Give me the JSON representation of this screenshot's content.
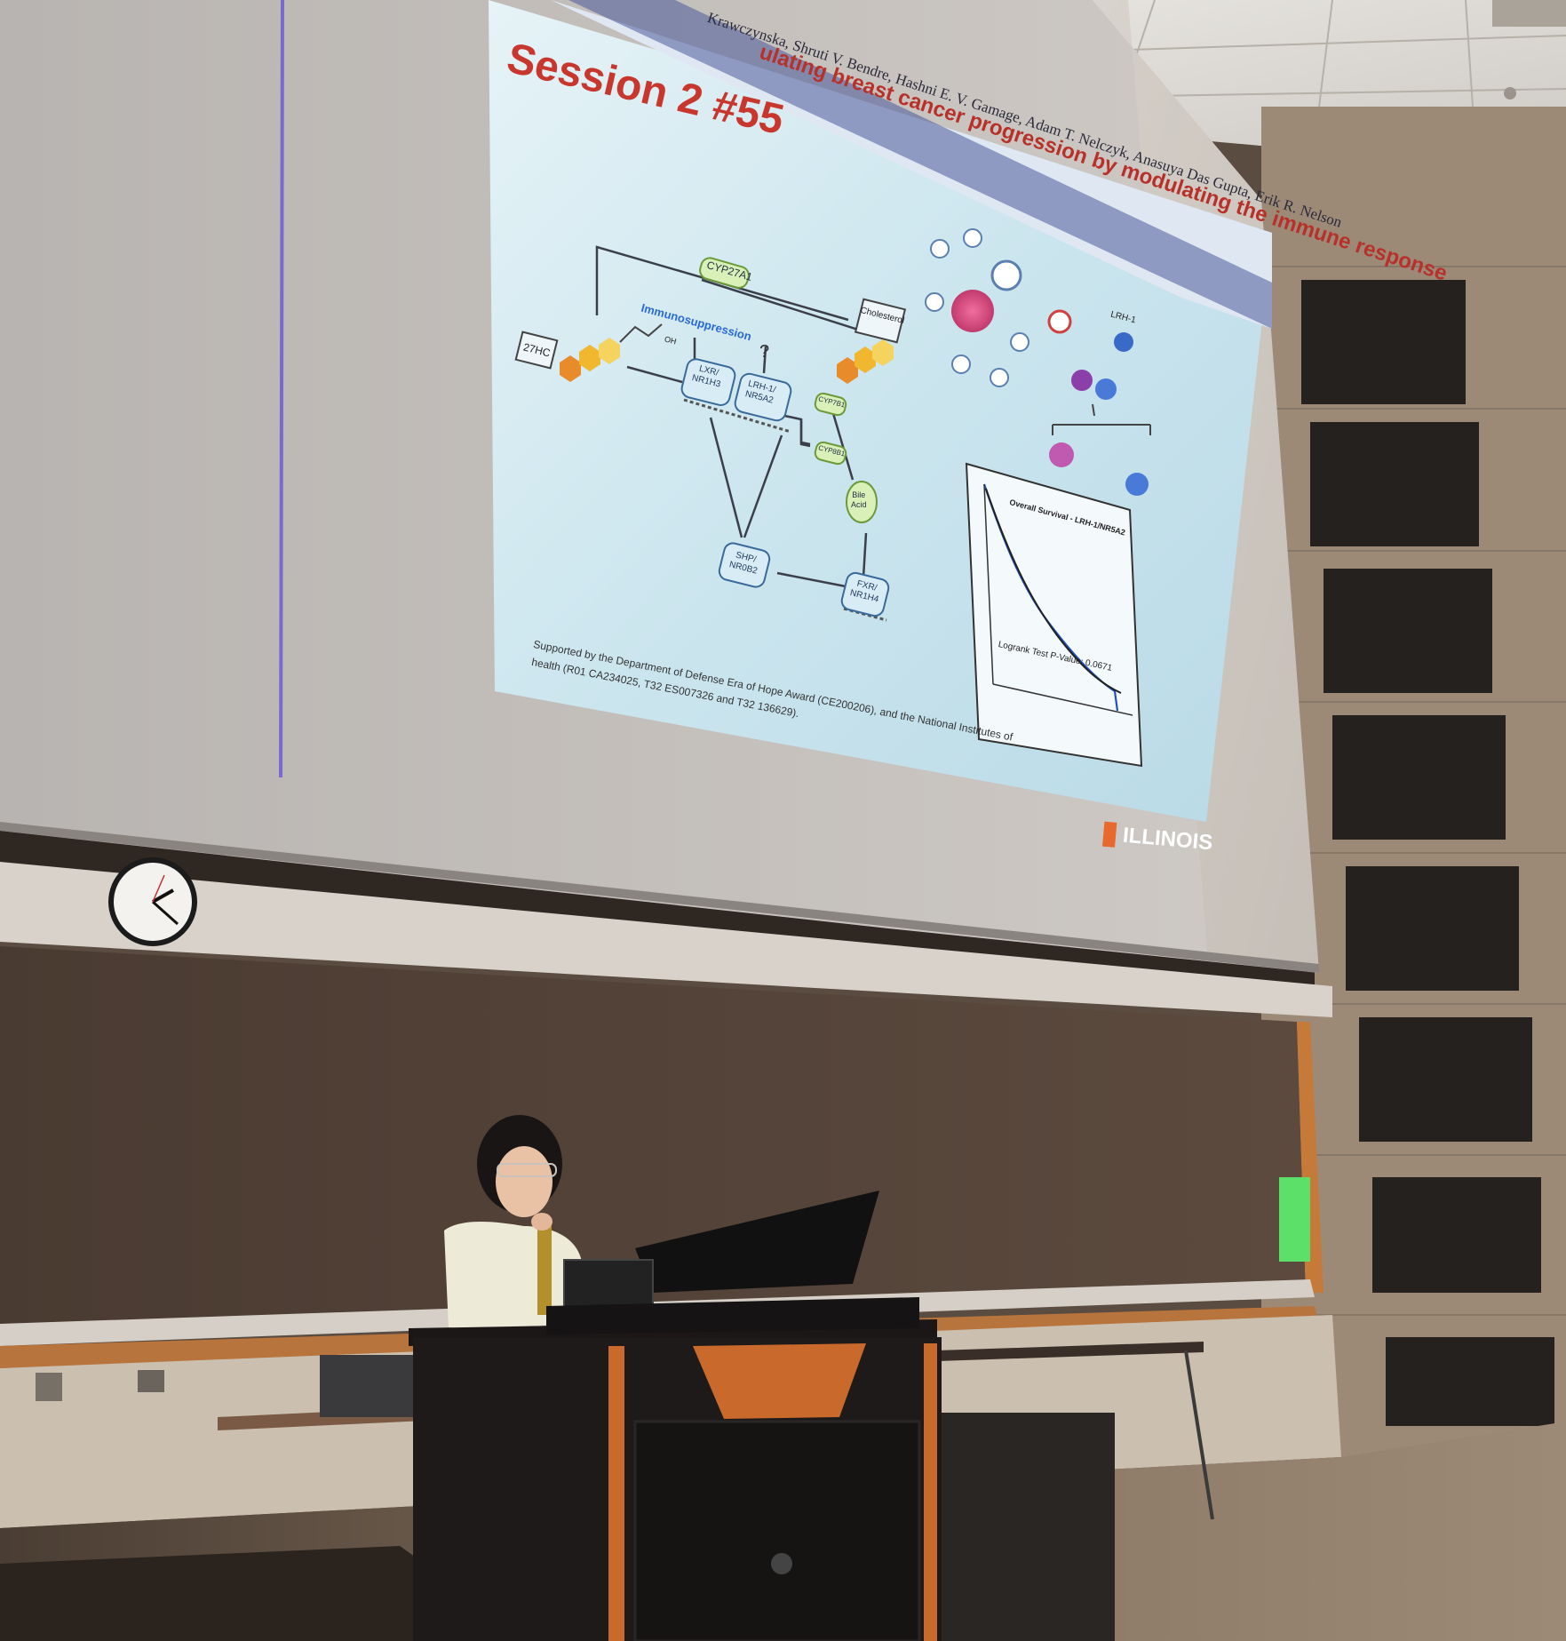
{
  "slide": {
    "header_partial": "ulating breast cancer progression by modulating the immune response",
    "authors_partial": "Krawczynska, Shruti V. Bendre, Hashni E. V. Gamage, Adam T. Nelczyk, Anasuya Das Gupta, Erik R. Nelson",
    "session": "Session 2 #55",
    "diagram": {
      "cyp27a1": "CYP27A1",
      "c27hc": "27HC",
      "oh": "OH",
      "immunosuppression": "Immunosuppression",
      "question": "?",
      "lxr_1": "LXR/",
      "lxr_2": "NR1H3",
      "lrh_1": "LRH-1/",
      "lrh_2": "NR5A2",
      "cholesterol": "Cholesterol",
      "cyp7b1": "CYP7B1",
      "cyp8b1": "CYP8B1",
      "bile_1": "Bile",
      "bile_2": "Acid",
      "shp_1": "SHP/",
      "shp_2": "NR0B2",
      "fxr_1": "FXR/",
      "fxr_2": "NR1H4",
      "lrh_label": "LRH-1"
    },
    "km": {
      "title": "Overall Survival - LRH-1/NR5A2",
      "pvalue": "Logrank Test P-Value: 0.0671"
    },
    "support_1": "Supported by the Department of Defense Era of Hope Award (CE200206), and the National Institutes of",
    "support_2": "health (R01 CA234025, T32 ES007326 and T32 136629).",
    "logo_text": "ILLINOIS"
  },
  "colors": {
    "slide_bg": "#cde6ee",
    "session_red": "#c8372d",
    "band_blue": "#4a5a9a",
    "illinois_orange": "#e8692d",
    "screen_gray": "#c9c3bd"
  }
}
